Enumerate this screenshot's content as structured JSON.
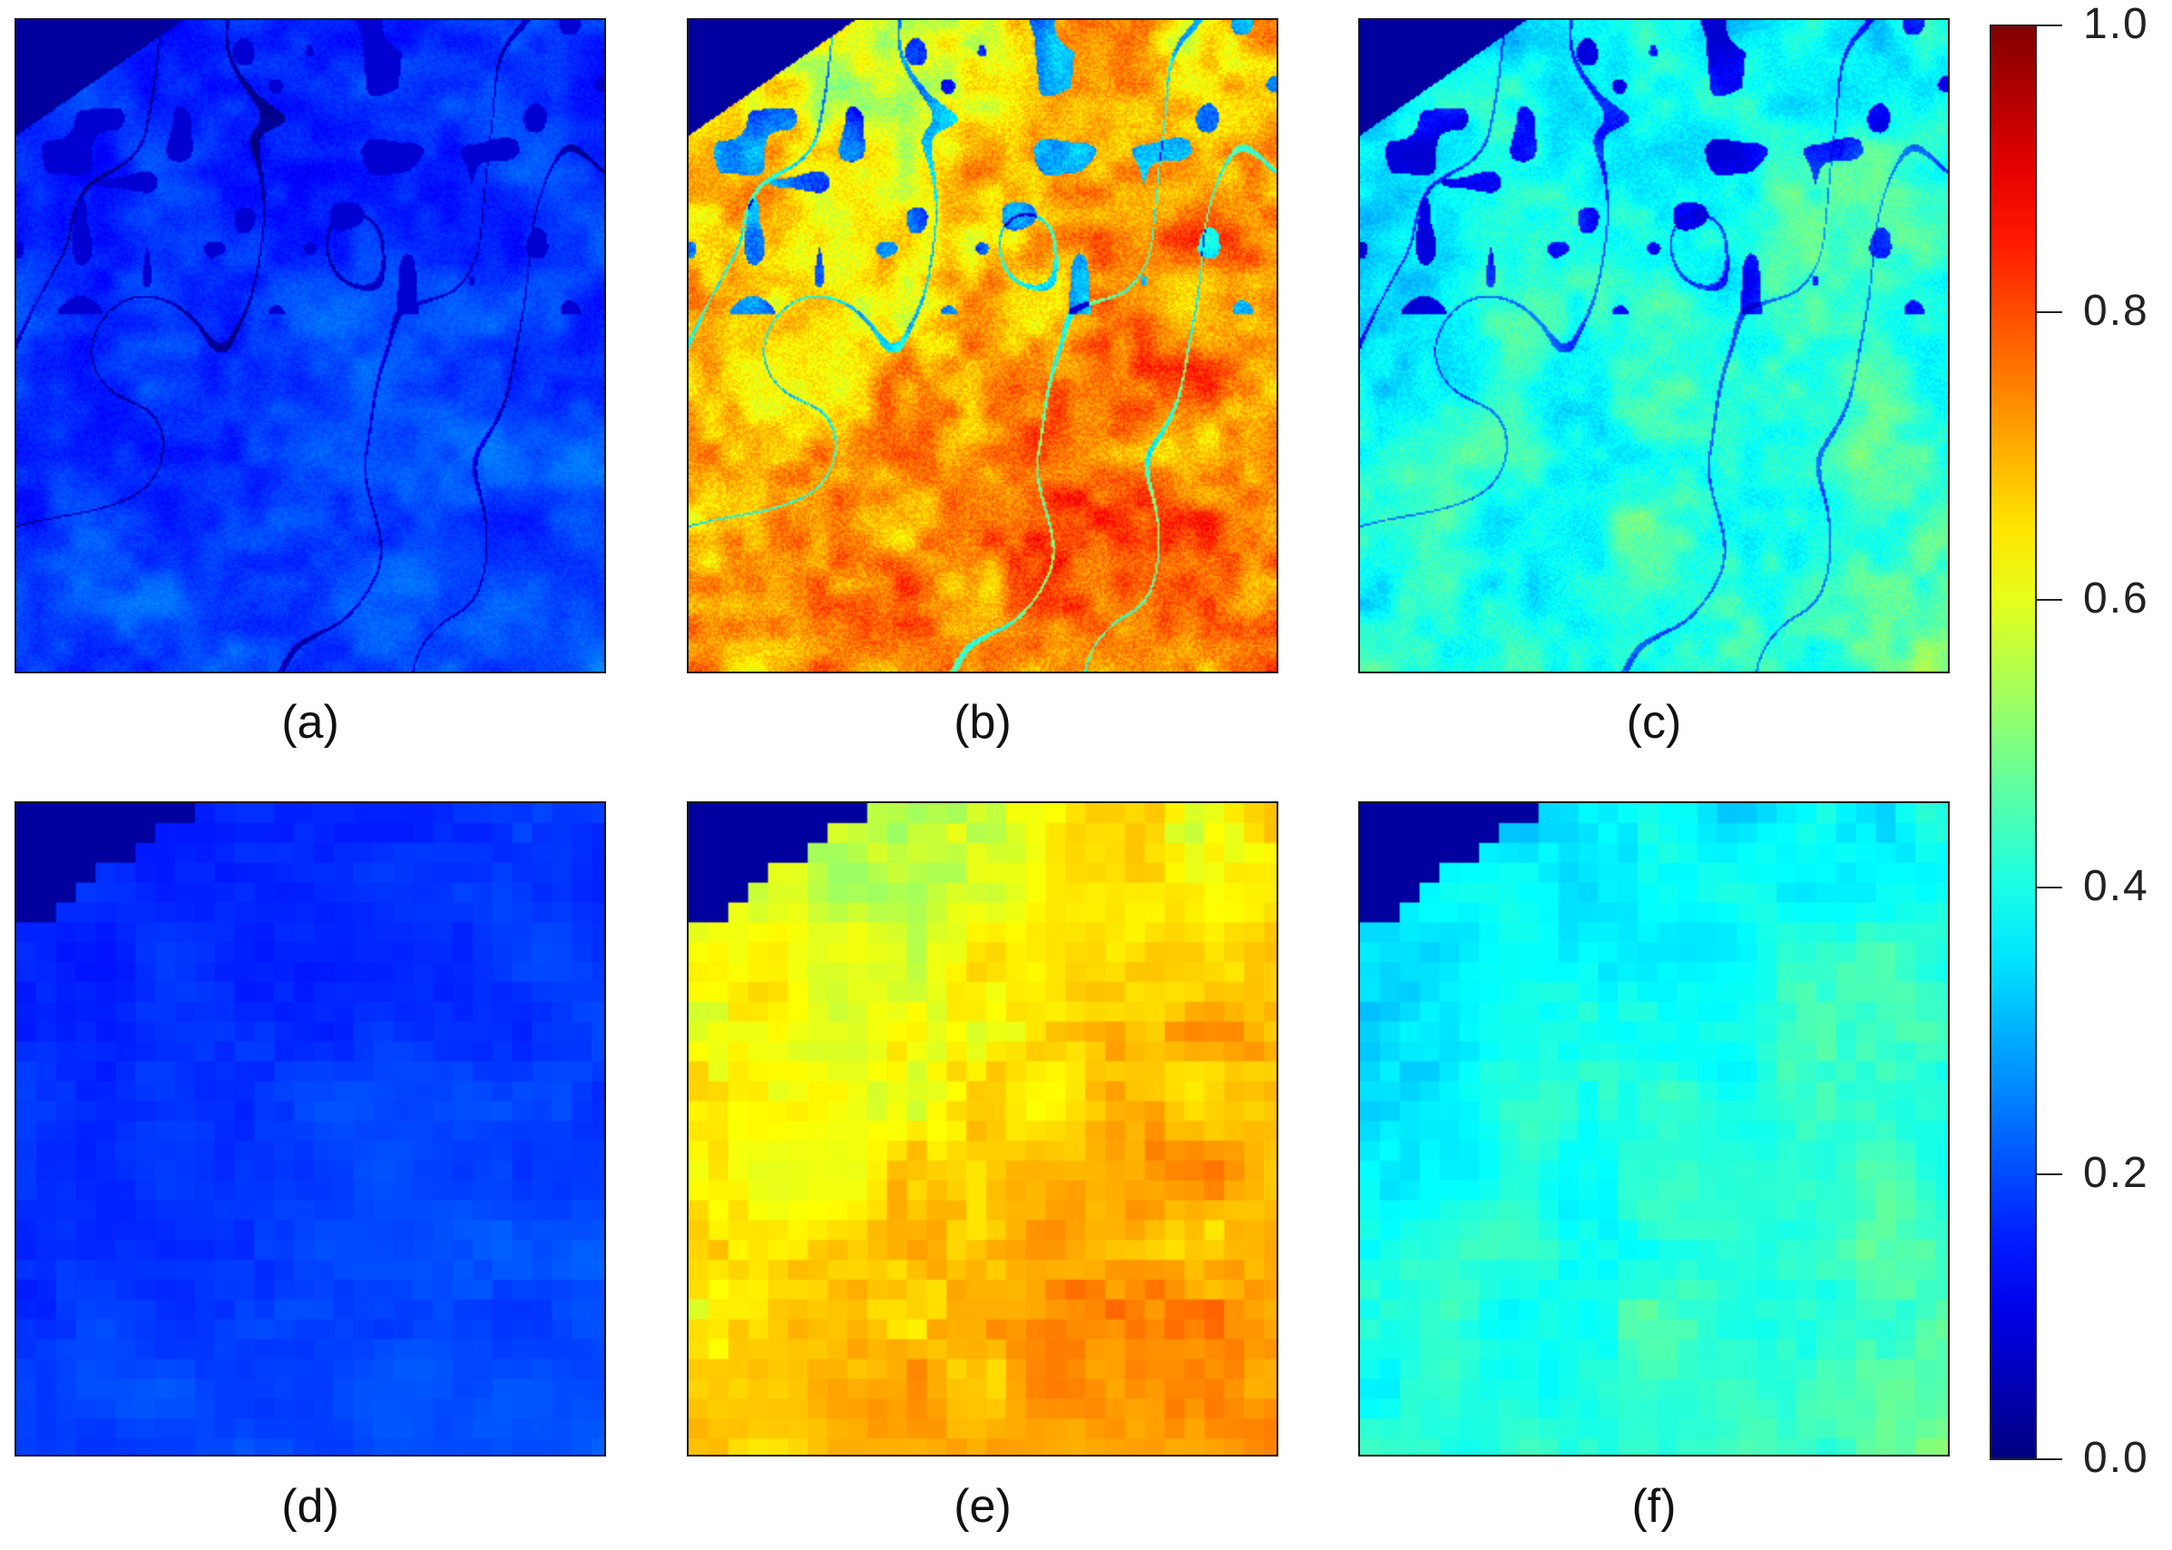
{
  "panels": [
    {
      "id": "a",
      "caption": "(a)",
      "kind": "fine",
      "base": 0.18,
      "gradient": 0.05,
      "variation": 0.06
    },
    {
      "id": "b",
      "caption": "(b)",
      "kind": "fine",
      "base": 0.7,
      "gradient": 0.14,
      "variation": 0.14
    },
    {
      "id": "c",
      "caption": "(c)",
      "kind": "fine",
      "base": 0.4,
      "gradient": 0.12,
      "variation": 0.09
    },
    {
      "id": "d",
      "caption": "(d)",
      "kind": "coarse",
      "base": 0.18,
      "gradient": 0.05,
      "variation": 0.03
    },
    {
      "id": "e",
      "caption": "(e)",
      "kind": "coarse",
      "base": 0.66,
      "gradient": 0.16,
      "variation": 0.08
    },
    {
      "id": "f",
      "caption": "(f)",
      "kind": "coarse",
      "base": 0.4,
      "gradient": 0.13,
      "variation": 0.06
    }
  ],
  "colorbar": {
    "colormap": "jet",
    "min": 0.0,
    "max": 1.0,
    "ticks": [
      "1.0",
      "0.8",
      "0.6",
      "0.4",
      "0.2",
      "0.0"
    ],
    "tick_values": [
      1.0,
      0.8,
      0.6,
      0.4,
      0.2,
      0.0
    ]
  },
  "colors": {
    "water": "#000a6e",
    "border": "#1a1a1a"
  }
}
